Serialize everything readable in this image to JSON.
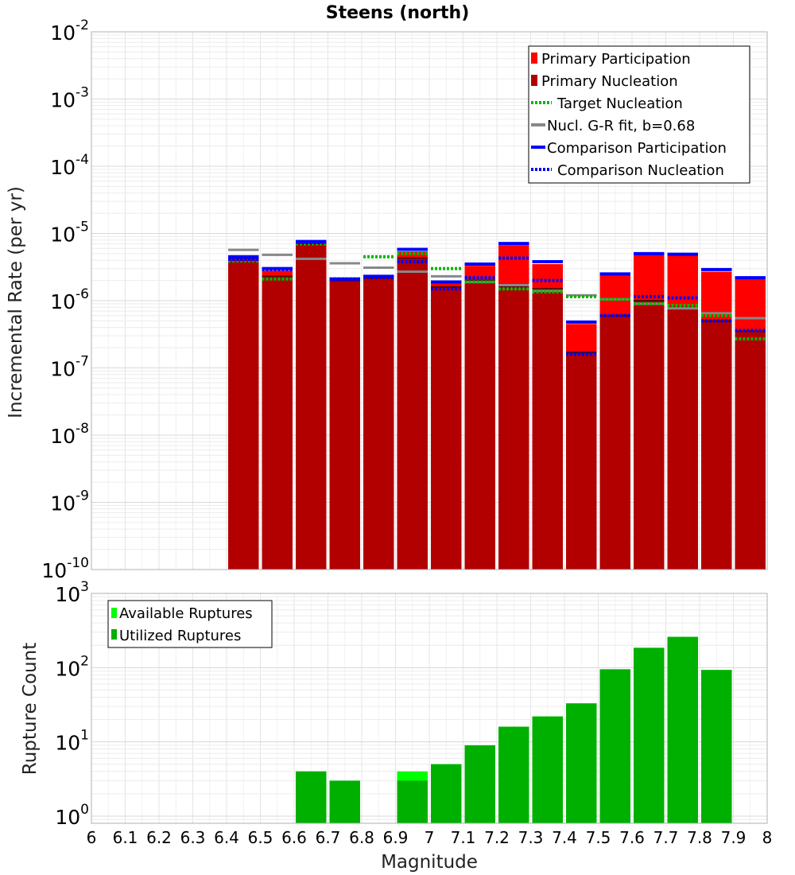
{
  "chart_data": [
    {
      "type": "bar",
      "title": "Steens (north)",
      "xlabel": "",
      "ylabel": "Incremental Rate (per yr)",
      "yscale": "log",
      "ylim": [
        1e-10,
        0.01
      ],
      "xlim": [
        6,
        8
      ],
      "y_tick_exponents": [
        "-2",
        "-3",
        "-4",
        "-5",
        "-6",
        "-7",
        "-8",
        "-9",
        "-10"
      ],
      "bin_width": 0.1,
      "bin_centers": [
        6.45,
        6.55,
        6.65,
        6.75,
        6.85,
        6.95,
        7.05,
        7.15,
        7.25,
        7.35,
        7.45,
        7.55,
        7.65,
        7.75,
        7.85,
        7.95
      ],
      "legend_position": "top-right",
      "colors": {
        "primary_participation": "#ff0000",
        "primary_nucleation": "#b20000",
        "target_nucleation": "#00b800",
        "gr_fit": "#888888",
        "comparison_participation": "#0000ff",
        "comparison_nucleation": "#0000ff"
      },
      "series": [
        {
          "name": "Primary Participation",
          "style": "bar",
          "values": [
            4.3e-06,
            2.8e-06,
            7.2e-06,
            2e-06,
            2.2e-06,
            5.4e-06,
            1.8e-06,
            3.3e-06,
            6.7e-06,
            3.5e-06,
            4.5e-07,
            2.4e-06,
            4.8e-06,
            4.7e-06,
            2.7e-06,
            2.1e-06
          ]
        },
        {
          "name": "Primary Nucleation",
          "style": "bar",
          "values": [
            4.3e-06,
            2.3e-06,
            7e-06,
            2e-06,
            2.2e-06,
            4.3e-06,
            1.6e-06,
            2e-06,
            1.6e-06,
            1.5e-06,
            1.7e-07,
            6e-07,
            1e-06,
            8e-07,
            5e-07,
            3.5e-07
          ]
        },
        {
          "name": "Target Nucleation",
          "style": "dotted",
          "values": [
            3.9e-06,
            2.1e-06,
            7e-06,
            2.1e-06,
            4.5e-06,
            5e-06,
            3e-06,
            1.9e-06,
            1.5e-06,
            1.35e-06,
            1.15e-06,
            1.05e-06,
            9e-07,
            8.5e-07,
            6e-07,
            2.7e-07
          ]
        },
        {
          "name": "Nucl. G-R fit, b=0.68",
          "style": "solid",
          "values": [
            5.7e-06,
            4.8e-06,
            4.2e-06,
            3.6e-06,
            3.1e-06,
            2.7e-06,
            2.3e-06,
            1.9e-06,
            1.7e-06,
            1.4e-06,
            1.2e-06,
            1.05e-06,
            9e-07,
            7.7e-07,
            6.5e-07,
            5.5e-07
          ]
        },
        {
          "name": "Comparison Participation",
          "style": "solid",
          "values": [
            4.5e-06,
            3e-06,
            7.6e-06,
            2.1e-06,
            2.3e-06,
            5.8e-06,
            1.9e-06,
            3.5e-06,
            7.1e-06,
            3.8e-06,
            4.8e-07,
            2.5e-06,
            5e-06,
            4.9e-06,
            2.9e-06,
            2.2e-06
          ]
        },
        {
          "name": "Comparison Nucleation",
          "style": "dotted",
          "values": [
            4.1e-06,
            2.9e-06,
            7.4e-06,
            2.1e-06,
            2.2e-06,
            3.8e-06,
            1.5e-06,
            2.2e-06,
            4.3e-06,
            2e-06,
            1.6e-07,
            6e-07,
            1.15e-06,
            1.1e-06,
            5e-07,
            3.6e-07
          ]
        }
      ]
    },
    {
      "type": "bar",
      "title": "",
      "xlabel": "Magnitude",
      "ylabel": "Rupture Count",
      "yscale": "log",
      "ylim": [
        0.8,
        1000
      ],
      "xlim": [
        6,
        8
      ],
      "x_ticks": [
        "6",
        "6.1",
        "6.2",
        "6.3",
        "6.4",
        "6.5",
        "6.6",
        "6.7",
        "6.8",
        "6.9",
        "7",
        "7.1",
        "7.2",
        "7.3",
        "7.4",
        "7.5",
        "7.6",
        "7.7",
        "7.8",
        "7.9",
        "8"
      ],
      "y_tick_exponents": [
        "3",
        "2",
        "1",
        "0"
      ],
      "bin_width": 0.1,
      "bin_centers": [
        6.65,
        6.75,
        6.95,
        7.05,
        7.15,
        7.25,
        7.35,
        7.45,
        7.55,
        7.65,
        7.75,
        7.85
      ],
      "legend_position": "top-left",
      "colors": {
        "available": "#00ff00",
        "utilized": "#00b000"
      },
      "series": [
        {
          "name": "Available Ruptures",
          "values": [
            4,
            3,
            4,
            5,
            9,
            16,
            22,
            33,
            95,
            185,
            260,
            93
          ]
        },
        {
          "name": "Utilized Ruptures",
          "values": [
            4,
            3,
            3,
            5,
            9,
            16,
            22,
            33,
            95,
            185,
            260,
            93
          ]
        }
      ]
    }
  ]
}
